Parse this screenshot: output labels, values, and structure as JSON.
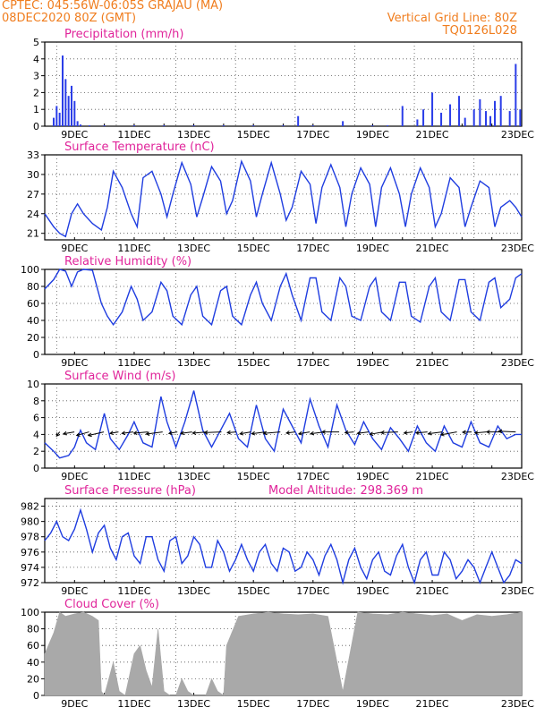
{
  "header": {
    "line1_left": "CPTEC:   045:56W-06:05S   GRAJAU (MA)",
    "line2_left": "08DEC2020 80Z (GMT)",
    "line1_right": "Vertical Grid Line: 80Z",
    "line2_right": "TQ0126L028"
  },
  "colors": {
    "series": "#1f3de0",
    "bars": "#2a3de8",
    "cloud": "#a9a9a9",
    "title": "#e0249a",
    "header": "#f07d1e",
    "grid": "#555555"
  },
  "chart_data": [
    {
      "id": "precip",
      "type": "bar",
      "title": "Precipitation (mm/h)",
      "xlabel": "",
      "ylabel": "",
      "x_tick_labels": [
        "9DEC",
        "11DEC",
        "13DEC",
        "15DEC",
        "17DEC",
        "19DEC",
        "21DEC",
        "23DEC"
      ],
      "ylim": [
        0,
        5
      ],
      "yticks": [
        0,
        1,
        2,
        3,
        4,
        5
      ],
      "grid": true,
      "x": [
        0.3,
        0.4,
        0.5,
        0.6,
        0.7,
        0.8,
        0.9,
        1.0,
        1.1,
        1.2,
        1.5,
        2.0,
        3.0,
        4.0,
        5.0,
        6.0,
        7.0,
        8.0,
        8.5,
        9.0,
        10.0,
        11.0,
        11.5,
        12.0,
        12.5,
        12.7,
        13.0,
        13.3,
        13.6,
        13.9,
        14.1,
        14.4,
        14.6,
        14.8,
        14.95,
        15.1,
        15.3,
        15.6,
        15.8,
        15.95
      ],
      "values": [
        0.5,
        1.2,
        0.8,
        4.2,
        2.8,
        1.8,
        2.4,
        1.5,
        0.3,
        0.1,
        0.05,
        0.05,
        0.05,
        0.05,
        0.05,
        0.05,
        0.05,
        0.05,
        0.6,
        0.05,
        0.3,
        0.05,
        0.05,
        1.2,
        0.4,
        1.0,
        2.0,
        0.8,
        1.3,
        1.8,
        0.5,
        1.0,
        1.6,
        0.9,
        0.6,
        1.5,
        1.8,
        0.9,
        3.7,
        1.0
      ]
    },
    {
      "id": "temp",
      "type": "line",
      "title": "Surface Temperature (nC)",
      "x_tick_labels": [
        "9DEC",
        "11DEC",
        "13DEC",
        "15DEC",
        "17DEC",
        "19DEC",
        "21DEC",
        "23DEC"
      ],
      "ylim": [
        20,
        33
      ],
      "yticks": [
        21,
        24,
        27,
        30,
        33
      ],
      "grid": true,
      "x": [
        0,
        0.3,
        0.5,
        0.7,
        0.9,
        1.1,
        1.3,
        1.6,
        1.9,
        2.1,
        2.3,
        2.6,
        2.9,
        3.1,
        3.3,
        3.6,
        3.9,
        4.1,
        4.3,
        4.6,
        4.9,
        5.1,
        5.3,
        5.6,
        5.9,
        6.1,
        6.3,
        6.6,
        6.9,
        7.1,
        7.3,
        7.6,
        7.9,
        8.1,
        8.3,
        8.6,
        8.9,
        9.1,
        9.3,
        9.6,
        9.9,
        10.1,
        10.3,
        10.6,
        10.9,
        11.1,
        11.3,
        11.6,
        11.9,
        12.1,
        12.3,
        12.6,
        12.9,
        13.1,
        13.3,
        13.6,
        13.9,
        14.1,
        14.3,
        14.6,
        14.9,
        15.1,
        15.3,
        15.6,
        15.8,
        16.0
      ],
      "values": [
        24,
        22,
        21,
        20.5,
        24,
        25.5,
        24,
        22.5,
        21.5,
        25,
        30.5,
        28,
        24,
        22,
        29.5,
        30.5,
        27,
        23.5,
        27,
        31.8,
        28.5,
        23.5,
        26.5,
        31.2,
        29,
        24,
        26,
        32,
        29,
        23.5,
        27,
        31.8,
        27,
        23,
        25,
        30.5,
        28.5,
        22.5,
        28,
        31.5,
        28,
        22,
        27,
        31,
        28.5,
        22,
        28,
        31,
        27,
        22,
        27,
        31,
        28,
        22,
        24,
        29.5,
        28,
        22,
        25,
        29,
        28,
        22,
        25,
        26,
        25,
        23.5
      ]
    },
    {
      "id": "rh",
      "type": "line",
      "title": "Relative Humidity (%)",
      "x_tick_labels": [
        "9DEC",
        "11DEC",
        "13DEC",
        "15DEC",
        "17DEC",
        "19DEC",
        "21DEC",
        "23DEC"
      ],
      "ylim": [
        0,
        100
      ],
      "yticks": [
        0,
        20,
        40,
        60,
        80,
        100
      ],
      "grid": true,
      "x": [
        0,
        0.3,
        0.5,
        0.7,
        0.9,
        1.1,
        1.3,
        1.6,
        1.9,
        2.1,
        2.3,
        2.6,
        2.9,
        3.1,
        3.3,
        3.6,
        3.9,
        4.1,
        4.3,
        4.6,
        4.9,
        5.1,
        5.3,
        5.6,
        5.9,
        6.1,
        6.3,
        6.6,
        6.9,
        7.1,
        7.3,
        7.6,
        7.9,
        8.1,
        8.3,
        8.6,
        8.9,
        9.1,
        9.3,
        9.6,
        9.9,
        10.1,
        10.3,
        10.6,
        10.9,
        11.1,
        11.3,
        11.6,
        11.9,
        12.1,
        12.3,
        12.6,
        12.9,
        13.1,
        13.3,
        13.6,
        13.9,
        14.1,
        14.3,
        14.6,
        14.9,
        15.1,
        15.3,
        15.6,
        15.8,
        16.0
      ],
      "values": [
        77,
        88,
        100,
        98,
        80,
        97,
        100,
        99,
        60,
        45,
        35,
        50,
        80,
        65,
        40,
        50,
        85,
        75,
        45,
        35,
        70,
        80,
        45,
        35,
        75,
        80,
        45,
        35,
        70,
        85,
        60,
        40,
        80,
        95,
        70,
        40,
        90,
        90,
        50,
        40,
        90,
        80,
        45,
        40,
        80,
        90,
        50,
        40,
        85,
        85,
        45,
        38,
        80,
        90,
        50,
        40,
        88,
        88,
        50,
        40,
        85,
        90,
        55,
        65,
        90,
        95
      ]
    },
    {
      "id": "wind",
      "type": "line",
      "title": "Surface Wind (m/s)",
      "x_tick_labels": [
        "9DEC",
        "11DEC",
        "13DEC",
        "15DEC",
        "17DEC",
        "19DEC",
        "21DEC",
        "23DEC"
      ],
      "ylim": [
        0,
        10
      ],
      "yticks": [
        0,
        2,
        4,
        6,
        8,
        10
      ],
      "grid": true,
      "x": [
        0,
        0.3,
        0.5,
        0.8,
        1.0,
        1.2,
        1.4,
        1.7,
        2.0,
        2.2,
        2.5,
        2.8,
        3.0,
        3.3,
        3.6,
        3.9,
        4.1,
        4.4,
        4.7,
        5.0,
        5.3,
        5.6,
        5.9,
        6.2,
        6.5,
        6.8,
        7.1,
        7.4,
        7.7,
        8.0,
        8.3,
        8.6,
        8.9,
        9.2,
        9.5,
        9.8,
        10.1,
        10.4,
        10.7,
        11.0,
        11.3,
        11.6,
        11.9,
        12.2,
        12.5,
        12.8,
        13.1,
        13.4,
        13.7,
        14.0,
        14.3,
        14.6,
        14.9,
        15.2,
        15.5,
        15.8,
        16.0
      ],
      "values": [
        3,
        2,
        1.2,
        1.5,
        2.5,
        4.5,
        3,
        2.2,
        6.5,
        3.5,
        2.2,
        4,
        5.5,
        3,
        2.5,
        8.5,
        5.5,
        2.5,
        5.5,
        9.2,
        4.5,
        2.5,
        4.5,
        6.5,
        3.5,
        2.5,
        7.5,
        3.5,
        2,
        7,
        5,
        3,
        8.2,
        5,
        2.5,
        7.5,
        4.5,
        2.8,
        5.5,
        3.5,
        2.2,
        4.8,
        3.5,
        2,
        5,
        3,
        2,
        5,
        3,
        2.5,
        5.5,
        3,
        2.5,
        5,
        3.5,
        4,
        4
      ]
    },
    {
      "id": "pressure",
      "type": "line",
      "title": "Surface Pressure (hPa)",
      "annotation": "Model Altitude: 298.369 m",
      "x_tick_labels": [
        "9DEC",
        "11DEC",
        "13DEC",
        "15DEC",
        "17DEC",
        "19DEC",
        "21DEC",
        "23DEC"
      ],
      "ylim": [
        972,
        983
      ],
      "yticks": [
        972,
        974,
        976,
        978,
        980,
        982
      ],
      "grid": true,
      "x": [
        0,
        0.2,
        0.4,
        0.6,
        0.8,
        1.0,
        1.2,
        1.4,
        1.6,
        1.8,
        2.0,
        2.2,
        2.4,
        2.6,
        2.8,
        3.0,
        3.2,
        3.4,
        3.6,
        3.8,
        4.0,
        4.2,
        4.4,
        4.6,
        4.8,
        5.0,
        5.2,
        5.4,
        5.6,
        5.8,
        6.0,
        6.2,
        6.4,
        6.6,
        6.8,
        7.0,
        7.2,
        7.4,
        7.6,
        7.8,
        8.0,
        8.2,
        8.4,
        8.6,
        8.8,
        9.0,
        9.2,
        9.4,
        9.6,
        9.8,
        10.0,
        10.2,
        10.4,
        10.6,
        10.8,
        11.0,
        11.2,
        11.4,
        11.6,
        11.8,
        12.0,
        12.2,
        12.4,
        12.6,
        12.8,
        13.0,
        13.2,
        13.4,
        13.6,
        13.8,
        14.0,
        14.2,
        14.4,
        14.6,
        14.8,
        15.0,
        15.2,
        15.4,
        15.6,
        15.8,
        16.0
      ],
      "values": [
        977.5,
        978.5,
        980,
        978,
        977.5,
        979,
        981.5,
        979,
        976,
        978.5,
        979.5,
        976.5,
        975,
        978,
        978.5,
        975.5,
        974.5,
        978,
        978,
        975,
        973.5,
        977.5,
        978,
        974.5,
        975.5,
        978,
        977,
        974,
        974,
        977.5,
        976,
        973.5,
        975,
        977,
        975,
        973.5,
        976,
        977,
        974.5,
        973.5,
        976.5,
        976,
        973.5,
        974,
        976,
        975,
        973,
        975.5,
        977,
        975,
        972,
        975,
        976.5,
        974,
        972.5,
        975,
        976,
        973.5,
        973,
        975.5,
        977,
        974,
        972,
        975,
        976,
        973,
        973,
        976,
        975,
        972.5,
        973.5,
        975,
        974,
        972,
        974,
        976,
        974,
        972,
        973,
        975,
        974.5
      ]
    },
    {
      "id": "cloud",
      "type": "area",
      "title": "Cloud Cover (%)",
      "x_tick_labels": [
        "9DEC",
        "11DEC",
        "13DEC",
        "15DEC",
        "17DEC",
        "19DEC",
        "21DEC",
        "23DEC"
      ],
      "ylim": [
        0,
        100
      ],
      "yticks": [
        0,
        20,
        40,
        60,
        80,
        100
      ],
      "grid": true,
      "x": [
        0,
        0.3,
        0.5,
        0.7,
        1.0,
        1.3,
        1.6,
        1.8,
        1.9,
        2.0,
        2.3,
        2.5,
        2.7,
        3.0,
        3.2,
        3.4,
        3.6,
        3.8,
        4.0,
        4.2,
        4.4,
        4.6,
        4.8,
        5.0,
        5.2,
        5.4,
        5.6,
        5.8,
        6.0,
        6.1,
        6.5,
        7.0,
        7.5,
        8.0,
        8.5,
        9.0,
        9.5,
        10.0,
        10.5,
        11.0,
        11.5,
        12.0,
        12.5,
        13.0,
        13.5,
        14.0,
        14.5,
        15.0,
        15.5,
        16.0
      ],
      "values": [
        50,
        75,
        100,
        95,
        98,
        100,
        95,
        90,
        5,
        0,
        40,
        5,
        0,
        50,
        60,
        30,
        10,
        80,
        5,
        0,
        0,
        20,
        5,
        0,
        0,
        0,
        20,
        5,
        0,
        60,
        95,
        98,
        100,
        98,
        97,
        98,
        95,
        5,
        100,
        98,
        97,
        100,
        98,
        96,
        98,
        90,
        97,
        95,
        97,
        100
      ]
    }
  ],
  "wind_arrows_dir_deg": [
    20,
    70,
    60,
    65,
    70,
    75,
    80,
    75,
    70,
    75,
    80,
    85,
    80,
    70,
    75,
    80,
    75,
    70,
    75,
    90,
    80,
    75,
    70,
    85,
    75,
    80,
    75,
    70,
    85,
    80,
    90,
    95
  ]
}
